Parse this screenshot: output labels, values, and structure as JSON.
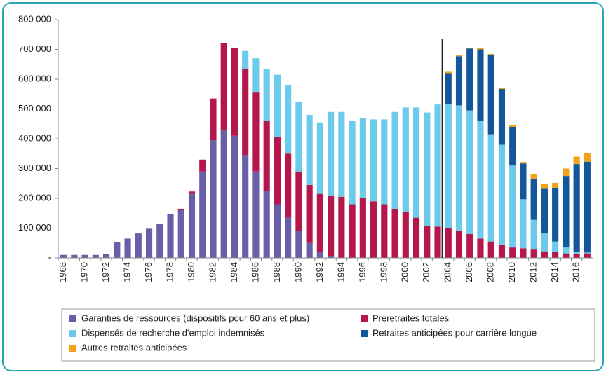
{
  "chart_data": {
    "type": "bar",
    "stacked": true,
    "categories": [
      "1968",
      null,
      "1970",
      null,
      "1972",
      null,
      "1974",
      null,
      "1976",
      null,
      "1978",
      null,
      "1980",
      null,
      "1982",
      null,
      "1984",
      null,
      "1986",
      null,
      "1988",
      null,
      "1990",
      null,
      "1992",
      null,
      "1994",
      null,
      "1996",
      null,
      "1998",
      null,
      "2000",
      null,
      "2002",
      null,
      "2004",
      null,
      "2006",
      null,
      "2008",
      null,
      "2010",
      null,
      "2012",
      null,
      "2014",
      null,
      "2016",
      null
    ],
    "series": [
      {
        "name": "Garanties de ressources (dispositifs pour 60 ans et plus)",
        "color": "#6a5ea8",
        "values": [
          10000,
          10000,
          10000,
          10000,
          13000,
          52000,
          65000,
          82000,
          98000,
          113000,
          147000,
          160000,
          215000,
          290000,
          395000,
          430000,
          410000,
          345000,
          290000,
          225000,
          180000,
          135000,
          90000,
          50000,
          20000,
          5000,
          0,
          0,
          0,
          0,
          0,
          0,
          0,
          0,
          0,
          0,
          0,
          0,
          0,
          0,
          0,
          0,
          0,
          0,
          0,
          0,
          0,
          0,
          0,
          0
        ]
      },
      {
        "name": "Préretraites totales",
        "color": "#b5164b",
        "values": [
          0,
          0,
          0,
          0,
          0,
          0,
          0,
          0,
          0,
          0,
          0,
          5000,
          8000,
          40000,
          140000,
          290000,
          295000,
          290000,
          265000,
          235000,
          225000,
          215000,
          200000,
          195000,
          195000,
          205000,
          205000,
          180000,
          200000,
          190000,
          180000,
          165000,
          155000,
          135000,
          108000,
          105000,
          100000,
          92000,
          80000,
          65000,
          55000,
          45000,
          35000,
          32000,
          28000,
          22000,
          20000,
          15000,
          12000,
          15000
        ]
      },
      {
        "name": "Dispensés de recherche d'emploi indemnisés",
        "color": "#6ccbea",
        "values": [
          0,
          0,
          0,
          0,
          0,
          0,
          0,
          0,
          0,
          0,
          0,
          0,
          0,
          0,
          0,
          0,
          0,
          60000,
          115000,
          175000,
          210000,
          230000,
          235000,
          235000,
          240000,
          280000,
          285000,
          280000,
          270000,
          275000,
          285000,
          325000,
          350000,
          370000,
          380000,
          410000,
          415000,
          420000,
          415000,
          395000,
          360000,
          335000,
          275000,
          165000,
          100000,
          60000,
          35000,
          20000,
          8000,
          3000
        ]
      },
      {
        "name": "Retraites anticipées pour carrière longue",
        "color": "#12569b",
        "values": [
          0,
          0,
          0,
          0,
          0,
          0,
          0,
          0,
          0,
          0,
          0,
          0,
          0,
          0,
          0,
          0,
          0,
          0,
          0,
          0,
          0,
          0,
          0,
          0,
          0,
          0,
          0,
          0,
          0,
          0,
          0,
          0,
          0,
          0,
          0,
          0,
          105000,
          165000,
          208000,
          240000,
          265000,
          187000,
          130000,
          120000,
          137000,
          150000,
          180000,
          240000,
          295000,
          305000
        ]
      },
      {
        "name": "Autres retraites anticipées",
        "color": "#f4a21c",
        "values": [
          0,
          0,
          0,
          0,
          0,
          0,
          0,
          0,
          0,
          0,
          0,
          0,
          0,
          0,
          0,
          0,
          0,
          0,
          0,
          0,
          0,
          0,
          0,
          0,
          0,
          0,
          0,
          0,
          0,
          0,
          0,
          0,
          0,
          0,
          0,
          0,
          5000,
          3000,
          3000,
          5000,
          5000,
          3000,
          5000,
          5000,
          15000,
          17000,
          17000,
          25000,
          25000,
          30000
        ]
      }
    ],
    "ylim": [
      0,
      800000
    ],
    "yticks": [
      {
        "value": 0,
        "label": "-"
      },
      {
        "value": 100000,
        "label": "100 000"
      },
      {
        "value": 200000,
        "label": "200 000"
      },
      {
        "value": 300000,
        "label": "300 000"
      },
      {
        "value": 400000,
        "label": "400 000"
      },
      {
        "value": 500000,
        "label": "500 000"
      },
      {
        "value": 600000,
        "label": "600 000"
      },
      {
        "value": 700000,
        "label": "700 000"
      },
      {
        "value": 800000,
        "label": "800 000"
      }
    ],
    "grid": false
  }
}
